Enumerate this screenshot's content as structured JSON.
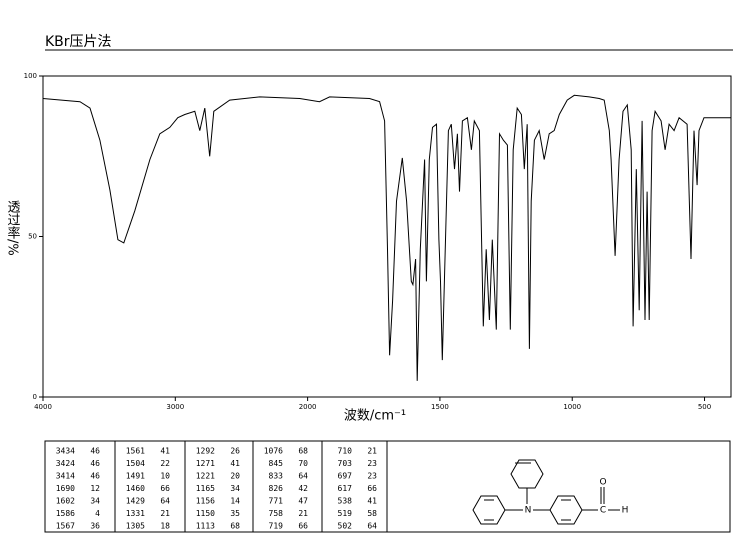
{
  "chart_data": {
    "type": "line",
    "title": "KBr压片法",
    "x_label": "波数/cm⁻¹",
    "y_label": "透过率/%",
    "xlim": [
      4000,
      400
    ],
    "ylim": [
      0,
      100
    ],
    "xticks": [
      4000,
      3000,
      2000,
      1500,
      1000,
      500
    ],
    "yticks": [
      0,
      50,
      100
    ],
    "xscale_break": 2000,
    "color": "#000000",
    "x": [
      4000,
      3720,
      3645,
      3570,
      3494,
      3434,
      3389,
      3306,
      3192,
      3117,
      3042,
      2981,
      2928,
      2853,
      2815,
      2777,
      2740,
      2709,
      2589,
      2362,
      2060,
      1955,
      1917,
      1766,
      1728,
      1709,
      1698,
      1690,
      1679,
      1664,
      1642,
      1626,
      1608,
      1602,
      1592,
      1586,
      1574,
      1558,
      1551,
      1540,
      1528,
      1513,
      1504,
      1498,
      1491,
      1479,
      1468,
      1457,
      1445,
      1434,
      1426,
      1415,
      1396,
      1381,
      1370,
      1351,
      1336,
      1325,
      1313,
      1302,
      1287,
      1275,
      1260,
      1245,
      1234,
      1223,
      1208,
      1192,
      1181,
      1170,
      1162,
      1155,
      1143,
      1125,
      1106,
      1087,
      1068,
      1049,
      1019,
      992,
      936,
      898,
      879,
      860,
      853,
      838,
      823,
      808,
      792,
      777,
      770,
      758,
      747,
      736,
      725,
      717,
      709,
      698,
      687,
      664,
      649,
      634,
      615,
      596,
      566,
      551,
      540,
      528,
      521,
      502,
      464,
      400
    ],
    "values": [
      93,
      92,
      90,
      80,
      64.5,
      49,
      48,
      58,
      74,
      82,
      84,
      87,
      88,
      89,
      83,
      90,
      75,
      89,
      92.5,
      93.5,
      93,
      92,
      93.5,
      93,
      92,
      86,
      46,
      13,
      30,
      61,
      74.5,
      61,
      36,
      35,
      43,
      5,
      46,
      74,
      36,
      74,
      84,
      85,
      49,
      36,
      11.5,
      49,
      83,
      85,
      71,
      82,
      64,
      86,
      87,
      77,
      86,
      83,
      22,
      46,
      24,
      49,
      21,
      82,
      80,
      78.5,
      21,
      77,
      90,
      88,
      71,
      85,
      15,
      61,
      80,
      83,
      74,
      82,
      83,
      88,
      92.5,
      94,
      93.5,
      93,
      92.5,
      83,
      74,
      44,
      74,
      89,
      91,
      77,
      22,
      71,
      27,
      86,
      24,
      64,
      24,
      83,
      89,
      86,
      77,
      85,
      83,
      87,
      85,
      43,
      83,
      66,
      83,
      87,
      87,
      87
    ]
  },
  "peak_table": {
    "columns": [
      [
        [
          3434,
          46
        ],
        [
          3424,
          46
        ],
        [
          3414,
          46
        ],
        [
          1690,
          12
        ],
        [
          1602,
          34
        ],
        [
          1586,
          4
        ],
        [
          1567,
          36
        ]
      ],
      [
        [
          1561,
          41
        ],
        [
          1504,
          22
        ],
        [
          1491,
          10
        ],
        [
          1460,
          66
        ],
        [
          1429,
          64
        ],
        [
          1331,
          21
        ],
        [
          1305,
          18
        ]
      ],
      [
        [
          1292,
          26
        ],
        [
          1271,
          41
        ],
        [
          1221,
          20
        ],
        [
          1165,
          34
        ],
        [
          1156,
          14
        ],
        [
          1150,
          35
        ],
        [
          1113,
          68
        ]
      ],
      [
        [
          1076,
          68
        ],
        [
          845,
          70
        ],
        [
          833,
          64
        ],
        [
          826,
          42
        ],
        [
          771,
          47
        ],
        [
          758,
          21
        ],
        [
          719,
          66
        ]
      ],
      [
        [
          710,
          21
        ],
        [
          703,
          23
        ],
        [
          697,
          23
        ],
        [
          617,
          66
        ],
        [
          538,
          41
        ],
        [
          519,
          58
        ],
        [
          502,
          64
        ]
      ]
    ]
  },
  "structure": {
    "atoms": [
      "N",
      "O",
      "C",
      "H"
    ]
  }
}
